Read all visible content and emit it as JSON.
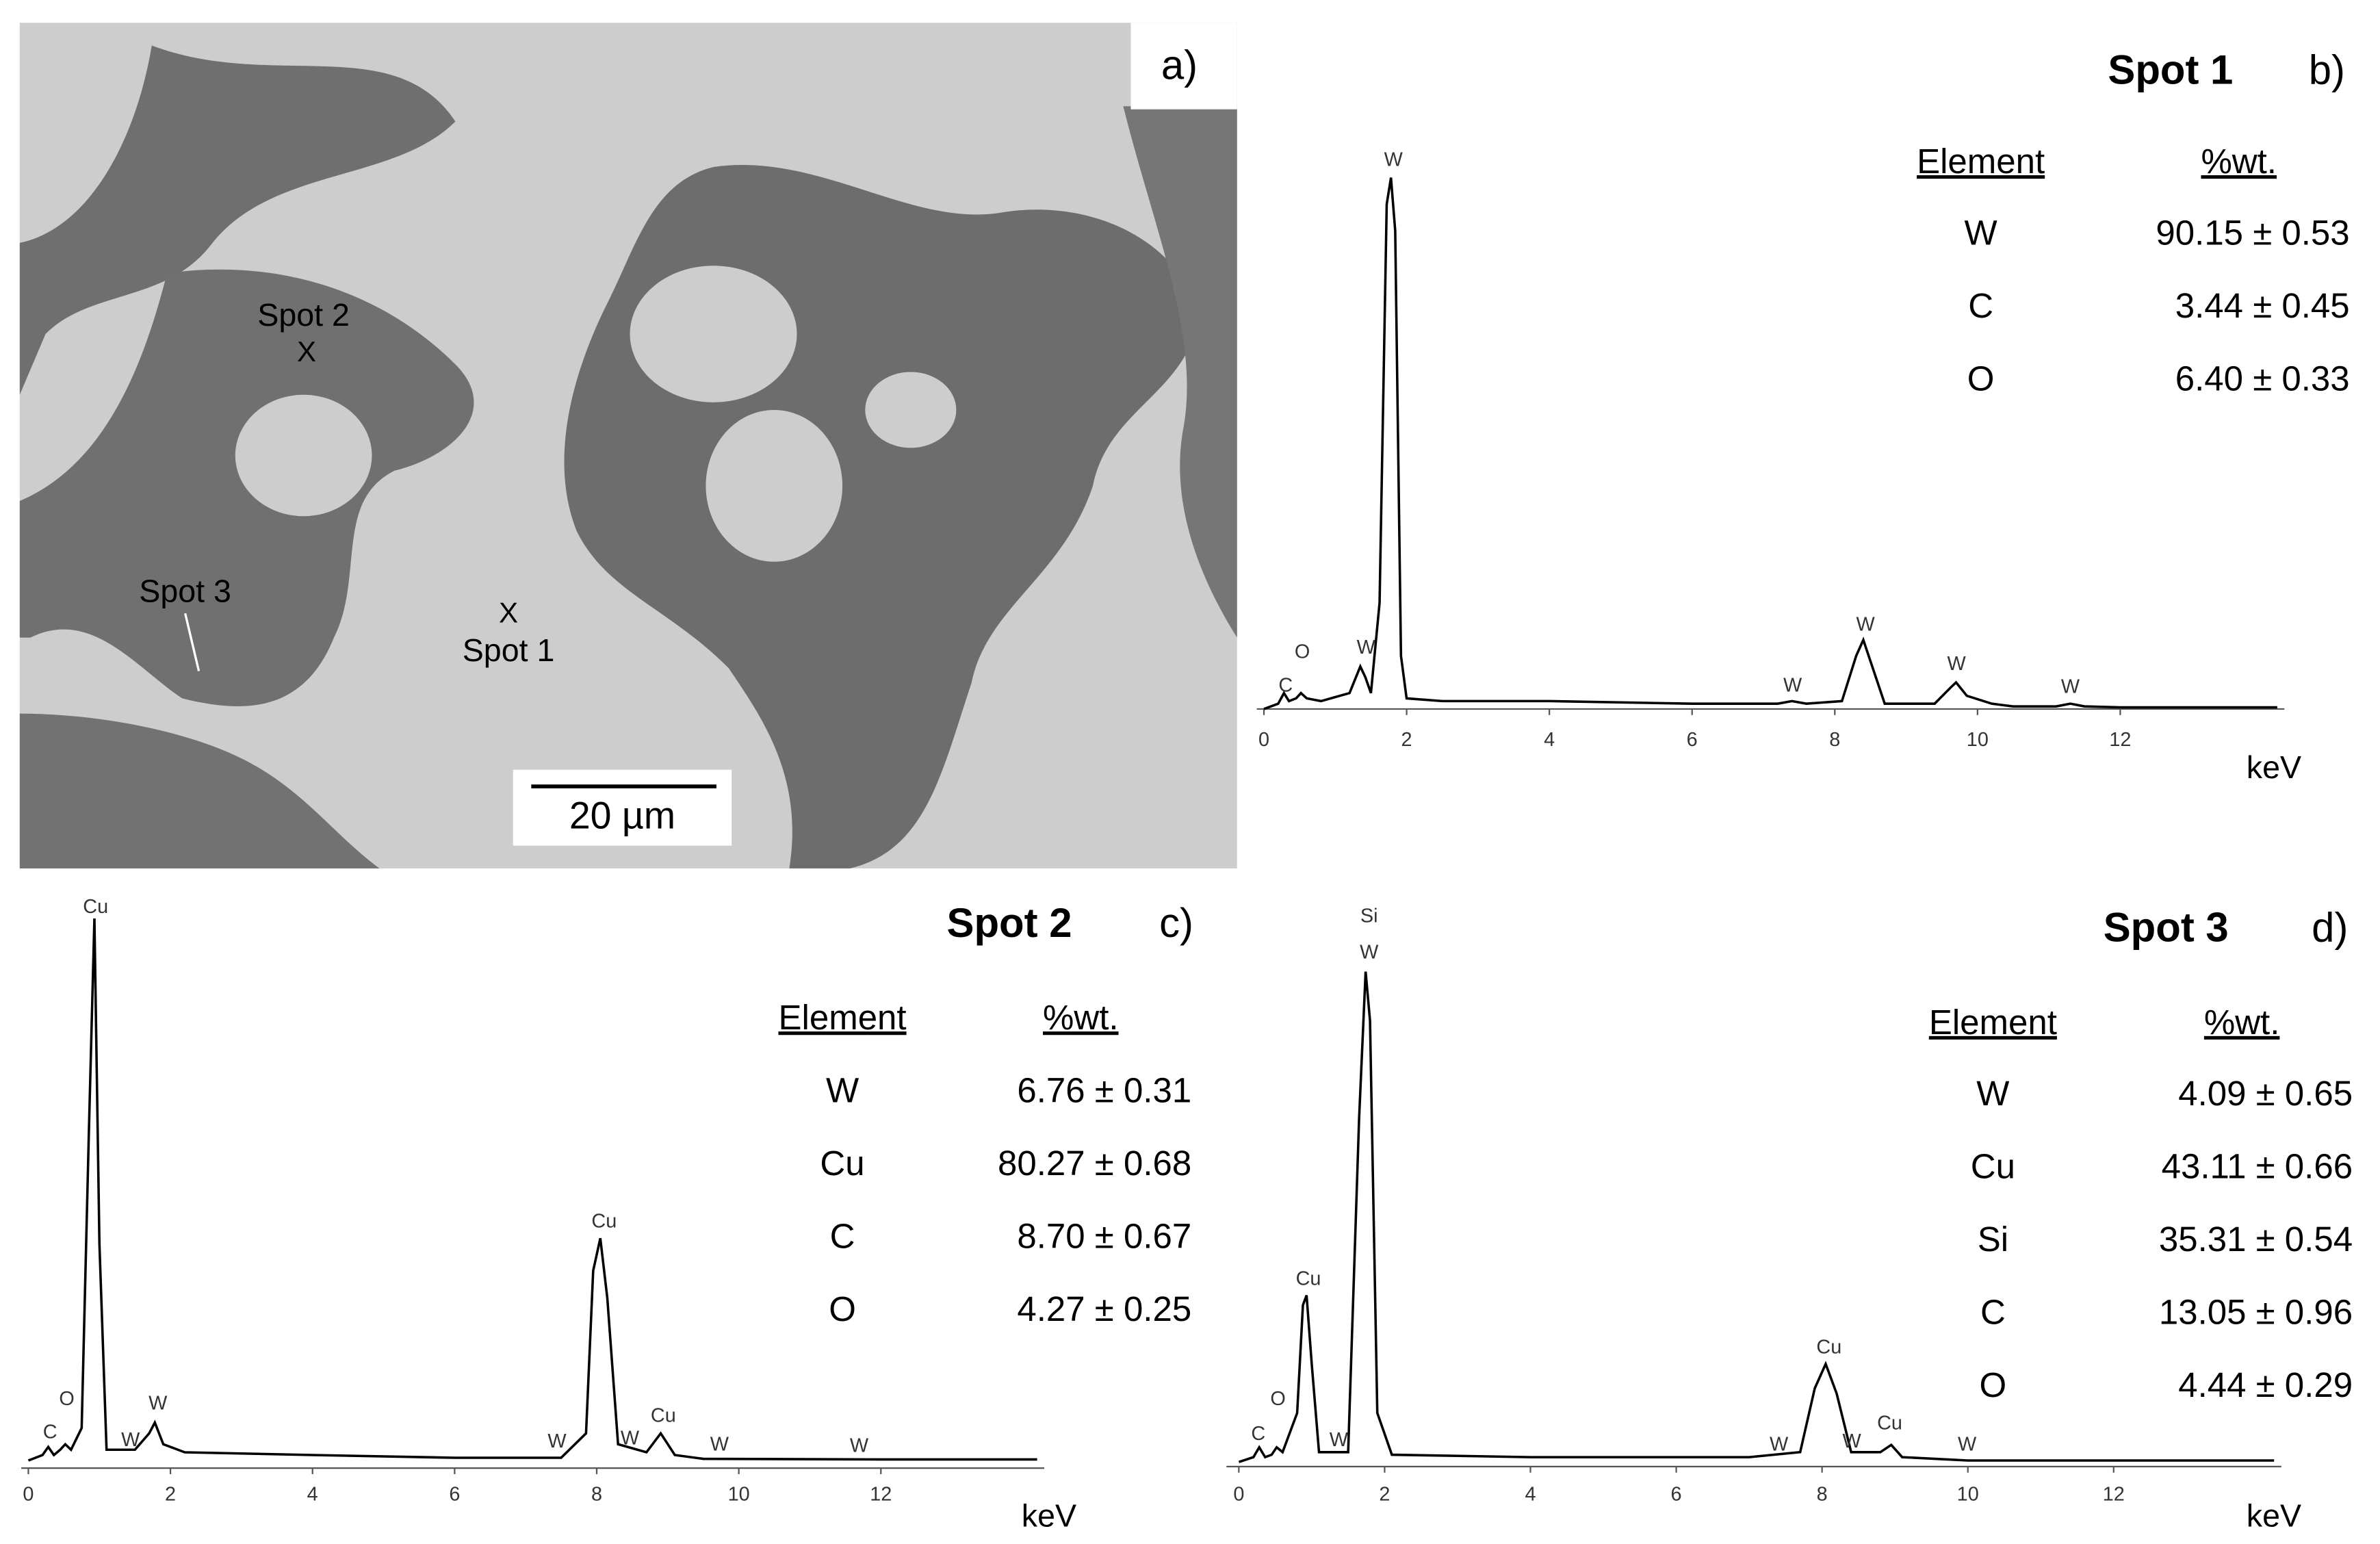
{
  "image_panel": {
    "label": "a)",
    "spot_labels": [
      "Spot 2",
      "X",
      "Spot 3",
      "X",
      "Spot 1"
    ],
    "scale_bar": "20 µm"
  },
  "chart_data": [
    {
      "type": "line",
      "panel_label": "b)",
      "title": "Spot 1",
      "x_label": "keV",
      "color": "#000000",
      "x": [
        0,
        0.2,
        0.28,
        0.35,
        0.45,
        0.52,
        0.6,
        0.8,
        1.2,
        1.35,
        1.42,
        1.5,
        1.62,
        1.72,
        1.78,
        1.84,
        1.92,
        2.0,
        2.5,
        4,
        6,
        7.2,
        7.4,
        7.6,
        8.1,
        8.3,
        8.4,
        8.5,
        8.7,
        9.4,
        9.62,
        9.7,
        9.85,
        10.2,
        10.5,
        11.1,
        11.3,
        11.5,
        12,
        14.2
      ],
      "values": [
        0,
        1,
        3,
        1.5,
        2,
        3,
        2,
        1.5,
        3,
        8,
        6,
        3,
        20,
        95,
        100,
        90,
        10,
        2,
        1.5,
        1.5,
        1,
        1,
        1.5,
        1,
        1.5,
        10,
        13,
        9,
        1,
        1,
        4,
        5,
        2.5,
        1,
        0.5,
        0.5,
        1,
        0.5,
        0.3,
        0.3
      ],
      "xlim": [
        -0.1,
        14.3
      ],
      "ylim": [
        0,
        100
      ],
      "xticks": [
        0,
        2,
        4,
        6,
        8,
        10,
        12
      ],
      "peak_labels": [
        "C",
        "O",
        "W",
        "W",
        "W",
        "W",
        "W",
        "W"
      ],
      "table": {
        "header": [
          "Element",
          "%wt."
        ],
        "rows": [
          [
            "W",
            "90.15 ± 0.53"
          ],
          [
            "C",
            "3.44 ± 0.45"
          ],
          [
            "O",
            "6.40 ± 0.33"
          ]
        ]
      }
    },
    {
      "type": "line",
      "panel_label": "c)",
      "title": "Spot 2",
      "x_label": "keV",
      "color": "#000000",
      "x": [
        0,
        0.2,
        0.28,
        0.36,
        0.45,
        0.52,
        0.6,
        0.75,
        0.85,
        0.93,
        1.0,
        1.1,
        1.5,
        1.7,
        1.78,
        1.9,
        2.2,
        4,
        6,
        7.5,
        7.85,
        7.95,
        8.05,
        8.15,
        8.3,
        8.7,
        8.9,
        9.1,
        9.5,
        12,
        14.2
      ],
      "values": [
        0,
        1,
        2.5,
        1,
        2,
        3,
        2,
        6,
        60,
        100,
        40,
        2,
        2,
        5,
        7,
        3,
        1.5,
        1,
        0.5,
        0.5,
        5,
        35,
        41,
        30,
        3,
        1.5,
        5,
        1,
        0.3,
        0.2,
        0.2
      ],
      "xlim": [
        -0.1,
        14.3
      ],
      "ylim": [
        0,
        100
      ],
      "xticks": [
        0,
        2,
        4,
        6,
        8,
        10,
        12
      ],
      "peak_labels": [
        "Cu",
        "C",
        "O",
        "W",
        "W",
        "W",
        "Cu",
        "W",
        "Cu",
        "W",
        "W"
      ],
      "table": {
        "header": [
          "Element",
          "%wt."
        ],
        "rows": [
          [
            "W",
            "6.76 ± 0.31"
          ],
          [
            "Cu",
            "80.27 ± 0.68"
          ],
          [
            "C",
            "8.70 ± 0.67"
          ],
          [
            "O",
            "4.27 ± 0.25"
          ]
        ]
      }
    },
    {
      "type": "line",
      "panel_label": "d)",
      "title": "Spot 3",
      "x_label": "keV",
      "color": "#000000",
      "x": [
        0,
        0.2,
        0.28,
        0.36,
        0.45,
        0.52,
        0.6,
        0.8,
        0.88,
        0.93,
        1.0,
        1.1,
        1.5,
        1.65,
        1.74,
        1.8,
        1.9,
        2.1,
        4,
        7,
        7.7,
        7.9,
        8.05,
        8.2,
        8.4,
        8.8,
        8.95,
        9.1,
        10,
        14.2
      ],
      "values": [
        0,
        1,
        3,
        1,
        1.5,
        3,
        2,
        10,
        32,
        34,
        20,
        2,
        2,
        70,
        100,
        90,
        10,
        1.5,
        1,
        1,
        2,
        15,
        20,
        14,
        2,
        2,
        3.5,
        1,
        0.3,
        0.3
      ],
      "xlim": [
        -0.17,
        14.3
      ],
      "ylim": [
        0,
        100
      ],
      "xticks": [
        0,
        2,
        4,
        6,
        8,
        10,
        12
      ],
      "peak_labels": [
        "Si",
        "W",
        "Cu",
        "O",
        "C",
        "W",
        "Cu",
        "W",
        "W",
        "Cu",
        "W"
      ],
      "table": {
        "header": [
          "Element",
          "%wt."
        ],
        "rows": [
          [
            "W",
            "4.09 ± 0.65"
          ],
          [
            "Cu",
            "43.11 ± 0.66"
          ],
          [
            "Si",
            "35.31 ± 0.54"
          ],
          [
            "C",
            "13.05 ± 0.96"
          ],
          [
            "O",
            "4.44 ± 0.29"
          ]
        ]
      }
    }
  ]
}
